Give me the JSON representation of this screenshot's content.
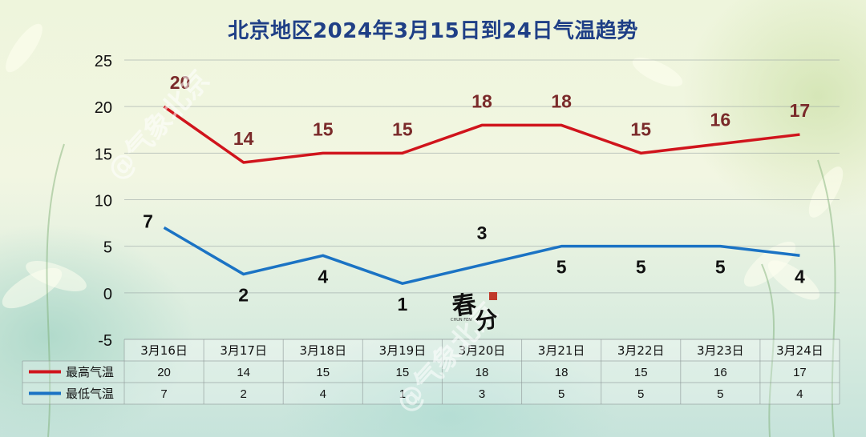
{
  "chart_data": {
    "type": "line",
    "title": "北京地区2024年3月15日到24日气温趋势",
    "categories": [
      "3月16日",
      "3月17日",
      "3月18日",
      "3月19日",
      "3月20日",
      "3月21日",
      "3月22日",
      "3月23日",
      "3月24日"
    ],
    "series": [
      {
        "name": "最高气温",
        "color": "#d0141c",
        "values": [
          20,
          14,
          15,
          15,
          18,
          18,
          15,
          16,
          17
        ]
      },
      {
        "name": "最低气温",
        "color": "#1b73c4",
        "values": [
          7,
          2,
          4,
          1,
          3,
          5,
          5,
          5,
          4
        ]
      }
    ],
    "ylim": [
      -5,
      25
    ],
    "yticks": [
      "-5",
      "0",
      "5",
      "10",
      "15",
      "20",
      "25"
    ],
    "grid": true,
    "legend": "data-table-bottom",
    "label_colors": {
      "high": "#7a2a2a",
      "low": "#111111"
    }
  },
  "watermark": "@气象北京",
  "stamp": {
    "main": "春分",
    "sub": "CHUN FEN"
  }
}
